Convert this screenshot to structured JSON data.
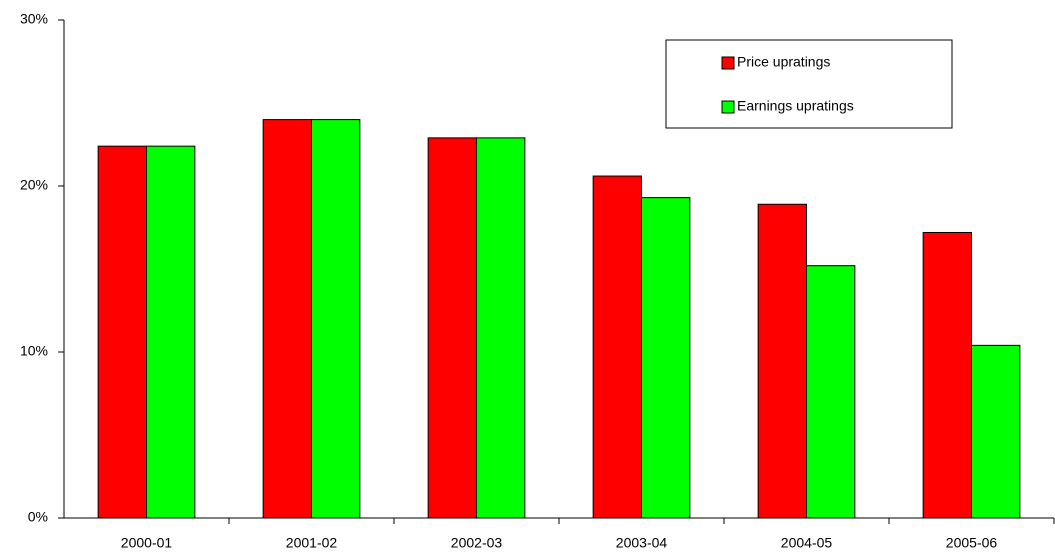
{
  "chart_data": {
    "type": "bar",
    "categories": [
      "2000-01",
      "2001-02",
      "2002-03",
      "2003-04",
      "2004-05",
      "2005-06"
    ],
    "series": [
      {
        "name": "Price upratings",
        "color": "#ff0000",
        "values": [
          22.4,
          24.0,
          22.9,
          20.6,
          18.9,
          17.2
        ]
      },
      {
        "name": "Earnings upratings",
        "color": "#00ff00",
        "values": [
          22.4,
          24.0,
          22.9,
          19.3,
          15.2,
          10.4
        ]
      }
    ],
    "ylim": [
      0,
      30
    ],
    "yticks": [
      {
        "value": 0,
        "label": "0%"
      },
      {
        "value": 10,
        "label": "10%"
      },
      {
        "value": 20,
        "label": "20%"
      },
      {
        "value": 30,
        "label": "30%"
      }
    ],
    "grid": false,
    "legend": "top-right"
  }
}
